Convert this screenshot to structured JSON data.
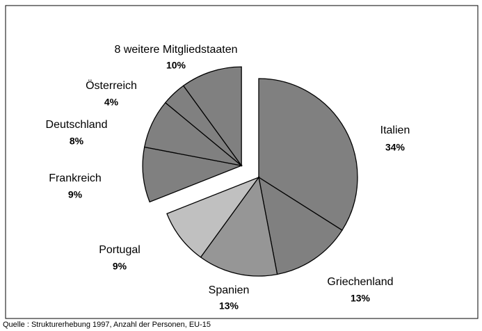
{
  "chart_data": {
    "type": "pie",
    "categories": [
      "Italien",
      "Griechenland",
      "Spanien",
      "Portugal",
      "Frankreich",
      "Deutschland",
      "Österreich",
      "8 weitere Mitgliedstaaten"
    ],
    "values": [
      34,
      13,
      13,
      9,
      9,
      8,
      4,
      10
    ],
    "value_labels": [
      "34%",
      "13%",
      "13%",
      "9%",
      "9%",
      "8%",
      "4%",
      "10%"
    ],
    "colors": [
      "#808080",
      "#808080",
      "#969696",
      "#c0c0c0",
      "#808080",
      "#808080",
      "#808080",
      "#808080"
    ],
    "exploded": [
      false,
      false,
      false,
      false,
      true,
      true,
      true,
      true
    ],
    "note": "Quelle : Strukturerhebung 1997, Anzahl der Personen, EU-15"
  }
}
